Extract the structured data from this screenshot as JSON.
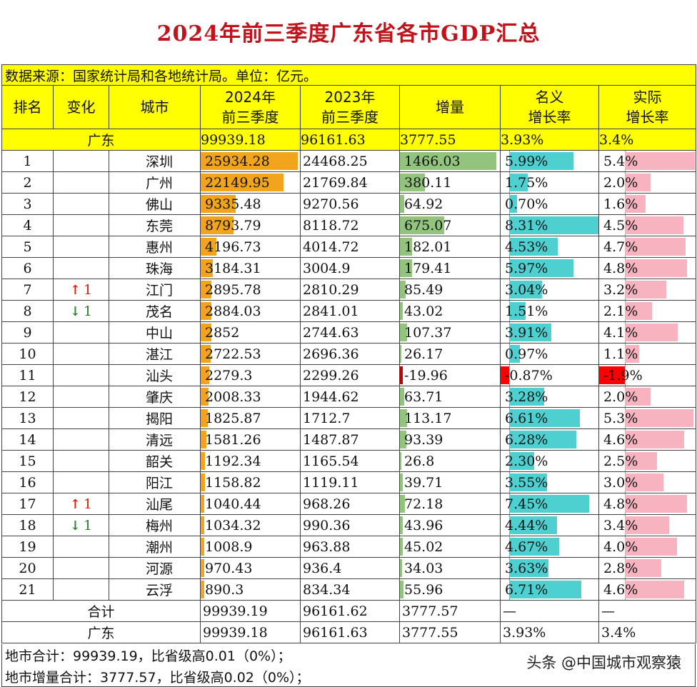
{
  "title": "2024年前三季度广东省各市GDP汇总",
  "source_note": "数据来源：国家统计局和各地统计局。单位：亿元。",
  "headers": {
    "rank": "排名",
    "change": "变化",
    "city": "城市",
    "gdp2024_l1": "2024年",
    "gdp2024_l2": "前三季度",
    "gdp2023_l1": "2023年",
    "gdp2023_l2": "前三季度",
    "increase": "增量",
    "nominal_l1": "名义",
    "nominal_l2": "增长率",
    "real_l1": "实际",
    "real_l2": "增长率"
  },
  "province_row": {
    "label": "广东",
    "gdp2024": "99939.18",
    "gdp2023": "96161.63",
    "increase": "3777.55",
    "nominal": "3.93%",
    "real": "3.4%"
  },
  "rows": [
    {
      "rank": "1",
      "change": "",
      "change_dir": "",
      "city": "深圳",
      "gdp2024": "25934.28",
      "gdp2023": "24468.25",
      "increase": "1466.03",
      "nominal": "5.99%",
      "real": "5.4%",
      "v_gdp": 25934.28,
      "v_inc": 1466.03,
      "v_nom": 5.99,
      "v_real": 5.4
    },
    {
      "rank": "2",
      "change": "",
      "change_dir": "",
      "city": "广州",
      "gdp2024": "22149.95",
      "gdp2023": "21769.84",
      "increase": "380.11",
      "nominal": "1.75%",
      "real": "2.0%",
      "v_gdp": 22149.95,
      "v_inc": 380.11,
      "v_nom": 1.75,
      "v_real": 2.0
    },
    {
      "rank": "3",
      "change": "",
      "change_dir": "",
      "city": "佛山",
      "gdp2024": "9335.48",
      "gdp2023": "9270.56",
      "increase": "64.92",
      "nominal": "0.70%",
      "real": "1.6%",
      "v_gdp": 9335.48,
      "v_inc": 64.92,
      "v_nom": 0.7,
      "v_real": 1.6
    },
    {
      "rank": "4",
      "change": "",
      "change_dir": "",
      "city": "东莞",
      "gdp2024": "8793.79",
      "gdp2023": "8118.72",
      "increase": "675.07",
      "nominal": "8.31%",
      "real": "4.5%",
      "v_gdp": 8793.79,
      "v_inc": 675.07,
      "v_nom": 8.31,
      "v_real": 4.5
    },
    {
      "rank": "5",
      "change": "",
      "change_dir": "",
      "city": "惠州",
      "gdp2024": "4196.73",
      "gdp2023": "4014.72",
      "increase": "182.01",
      "nominal": "4.53%",
      "real": "4.7%",
      "v_gdp": 4196.73,
      "v_inc": 182.01,
      "v_nom": 4.53,
      "v_real": 4.7
    },
    {
      "rank": "6",
      "change": "",
      "change_dir": "",
      "city": "珠海",
      "gdp2024": "3184.31",
      "gdp2023": "3004.9",
      "increase": "179.41",
      "nominal": "5.97%",
      "real": "4.8%",
      "v_gdp": 3184.31,
      "v_inc": 179.41,
      "v_nom": 5.97,
      "v_real": 4.8
    },
    {
      "rank": "7",
      "change": "1",
      "change_dir": "up",
      "city": "江门",
      "gdp2024": "2895.78",
      "gdp2023": "2810.29",
      "increase": "85.49",
      "nominal": "3.04%",
      "real": "3.2%",
      "v_gdp": 2895.78,
      "v_inc": 85.49,
      "v_nom": 3.04,
      "v_real": 3.2
    },
    {
      "rank": "8",
      "change": "1",
      "change_dir": "down",
      "city": "茂名",
      "gdp2024": "2884.03",
      "gdp2023": "2841.01",
      "increase": "43.02",
      "nominal": "1.51%",
      "real": "2.1%",
      "v_gdp": 2884.03,
      "v_inc": 43.02,
      "v_nom": 1.51,
      "v_real": 2.1
    },
    {
      "rank": "9",
      "change": "",
      "change_dir": "",
      "city": "中山",
      "gdp2024": "2852",
      "gdp2023": "2744.63",
      "increase": "107.37",
      "nominal": "3.91%",
      "real": "4.1%",
      "v_gdp": 2852,
      "v_inc": 107.37,
      "v_nom": 3.91,
      "v_real": 4.1
    },
    {
      "rank": "10",
      "change": "",
      "change_dir": "",
      "city": "湛江",
      "gdp2024": "2722.53",
      "gdp2023": "2696.36",
      "increase": "26.17",
      "nominal": "0.97%",
      "real": "1.1%",
      "v_gdp": 2722.53,
      "v_inc": 26.17,
      "v_nom": 0.97,
      "v_real": 1.1
    },
    {
      "rank": "11",
      "change": "",
      "change_dir": "",
      "city": "汕头",
      "gdp2024": "2279.3",
      "gdp2023": "2299.26",
      "increase": "-19.96",
      "nominal": "-0.87%",
      "real": "-1.9%",
      "v_gdp": 2279.3,
      "v_inc": -19.96,
      "v_nom": -0.87,
      "v_real": -1.9
    },
    {
      "rank": "12",
      "change": "",
      "change_dir": "",
      "city": "肇庆",
      "gdp2024": "2008.33",
      "gdp2023": "1944.62",
      "increase": "63.71",
      "nominal": "3.28%",
      "real": "2.0%",
      "v_gdp": 2008.33,
      "v_inc": 63.71,
      "v_nom": 3.28,
      "v_real": 2.0
    },
    {
      "rank": "13",
      "change": "",
      "change_dir": "",
      "city": "揭阳",
      "gdp2024": "1825.87",
      "gdp2023": "1712.7",
      "increase": "113.17",
      "nominal": "6.61%",
      "real": "5.3%",
      "v_gdp": 1825.87,
      "v_inc": 113.17,
      "v_nom": 6.61,
      "v_real": 5.3
    },
    {
      "rank": "14",
      "change": "",
      "change_dir": "",
      "city": "清远",
      "gdp2024": "1581.26",
      "gdp2023": "1487.87",
      "increase": "93.39",
      "nominal": "6.28%",
      "real": "4.6%",
      "v_gdp": 1581.26,
      "v_inc": 93.39,
      "v_nom": 6.28,
      "v_real": 4.6
    },
    {
      "rank": "15",
      "change": "",
      "change_dir": "",
      "city": "韶关",
      "gdp2024": "1192.34",
      "gdp2023": "1165.54",
      "increase": "26.8",
      "nominal": "2.30%",
      "real": "2.5%",
      "v_gdp": 1192.34,
      "v_inc": 26.8,
      "v_nom": 2.3,
      "v_real": 2.5
    },
    {
      "rank": "16",
      "change": "",
      "change_dir": "",
      "city": "阳江",
      "gdp2024": "1158.82",
      "gdp2023": "1119.11",
      "increase": "39.71",
      "nominal": "3.55%",
      "real": "3.0%",
      "v_gdp": 1158.82,
      "v_inc": 39.71,
      "v_nom": 3.55,
      "v_real": 3.0
    },
    {
      "rank": "17",
      "change": "1",
      "change_dir": "up",
      "city": "汕尾",
      "gdp2024": "1040.44",
      "gdp2023": "968.26",
      "increase": "72.18",
      "nominal": "7.45%",
      "real": "4.8%",
      "v_gdp": 1040.44,
      "v_inc": 72.18,
      "v_nom": 7.45,
      "v_real": 4.8
    },
    {
      "rank": "18",
      "change": "1",
      "change_dir": "down",
      "city": "梅州",
      "gdp2024": "1034.32",
      "gdp2023": "990.36",
      "increase": "43.96",
      "nominal": "4.44%",
      "real": "3.4%",
      "v_gdp": 1034.32,
      "v_inc": 43.96,
      "v_nom": 4.44,
      "v_real": 3.4
    },
    {
      "rank": "19",
      "change": "",
      "change_dir": "",
      "city": "潮州",
      "gdp2024": "1008.9",
      "gdp2023": "963.88",
      "increase": "45.02",
      "nominal": "4.67%",
      "real": "4.0%",
      "v_gdp": 1008.9,
      "v_inc": 45.02,
      "v_nom": 4.67,
      "v_real": 4.0
    },
    {
      "rank": "20",
      "change": "",
      "change_dir": "",
      "city": "河源",
      "gdp2024": "970.43",
      "gdp2023": "936.4",
      "increase": "34.03",
      "nominal": "3.63%",
      "real": "2.8%",
      "v_gdp": 970.43,
      "v_inc": 34.03,
      "v_nom": 3.63,
      "v_real": 2.8
    },
    {
      "rank": "21",
      "change": "",
      "change_dir": "",
      "city": "云浮",
      "gdp2024": "890.3",
      "gdp2023": "834.34",
      "increase": "55.96",
      "nominal": "6.71%",
      "real": "4.6%",
      "v_gdp": 890.3,
      "v_inc": 55.96,
      "v_nom": 6.71,
      "v_real": 4.6
    }
  ],
  "total_row": {
    "label": "合计",
    "gdp2024": "99939.19",
    "gdp2023": "96161.62",
    "increase": "3777.57",
    "nominal": "—",
    "real": "—"
  },
  "province_row_bottom": {
    "label": "广东",
    "gdp2024": "99939.18",
    "gdp2023": "96161.63",
    "increase": "3777.55",
    "nominal": "3.93%",
    "real": "3.4%"
  },
  "footer": {
    "line1": "地市合计：99939.19，比省级高0.01（0%）；",
    "line2": "地市增量合计：3777.57，比省级高0.02（0%）；"
  },
  "watermark": "头条 @中国城市观察猿",
  "colors": {
    "title": "#c0141c",
    "header_bg": "#ffff00",
    "gdp_bar": "#f2a51c",
    "increase_bar": "#93c47d",
    "nominal_bar": "#4fd0d0",
    "real_bar": "#f7b4c0",
    "negative_bar": "#ff0000",
    "up_arrow": "#d81e06",
    "down_arrow": "#2e7d32"
  },
  "icons": {
    "up": "up-arrow-icon",
    "down": "down-arrow-icon"
  }
}
